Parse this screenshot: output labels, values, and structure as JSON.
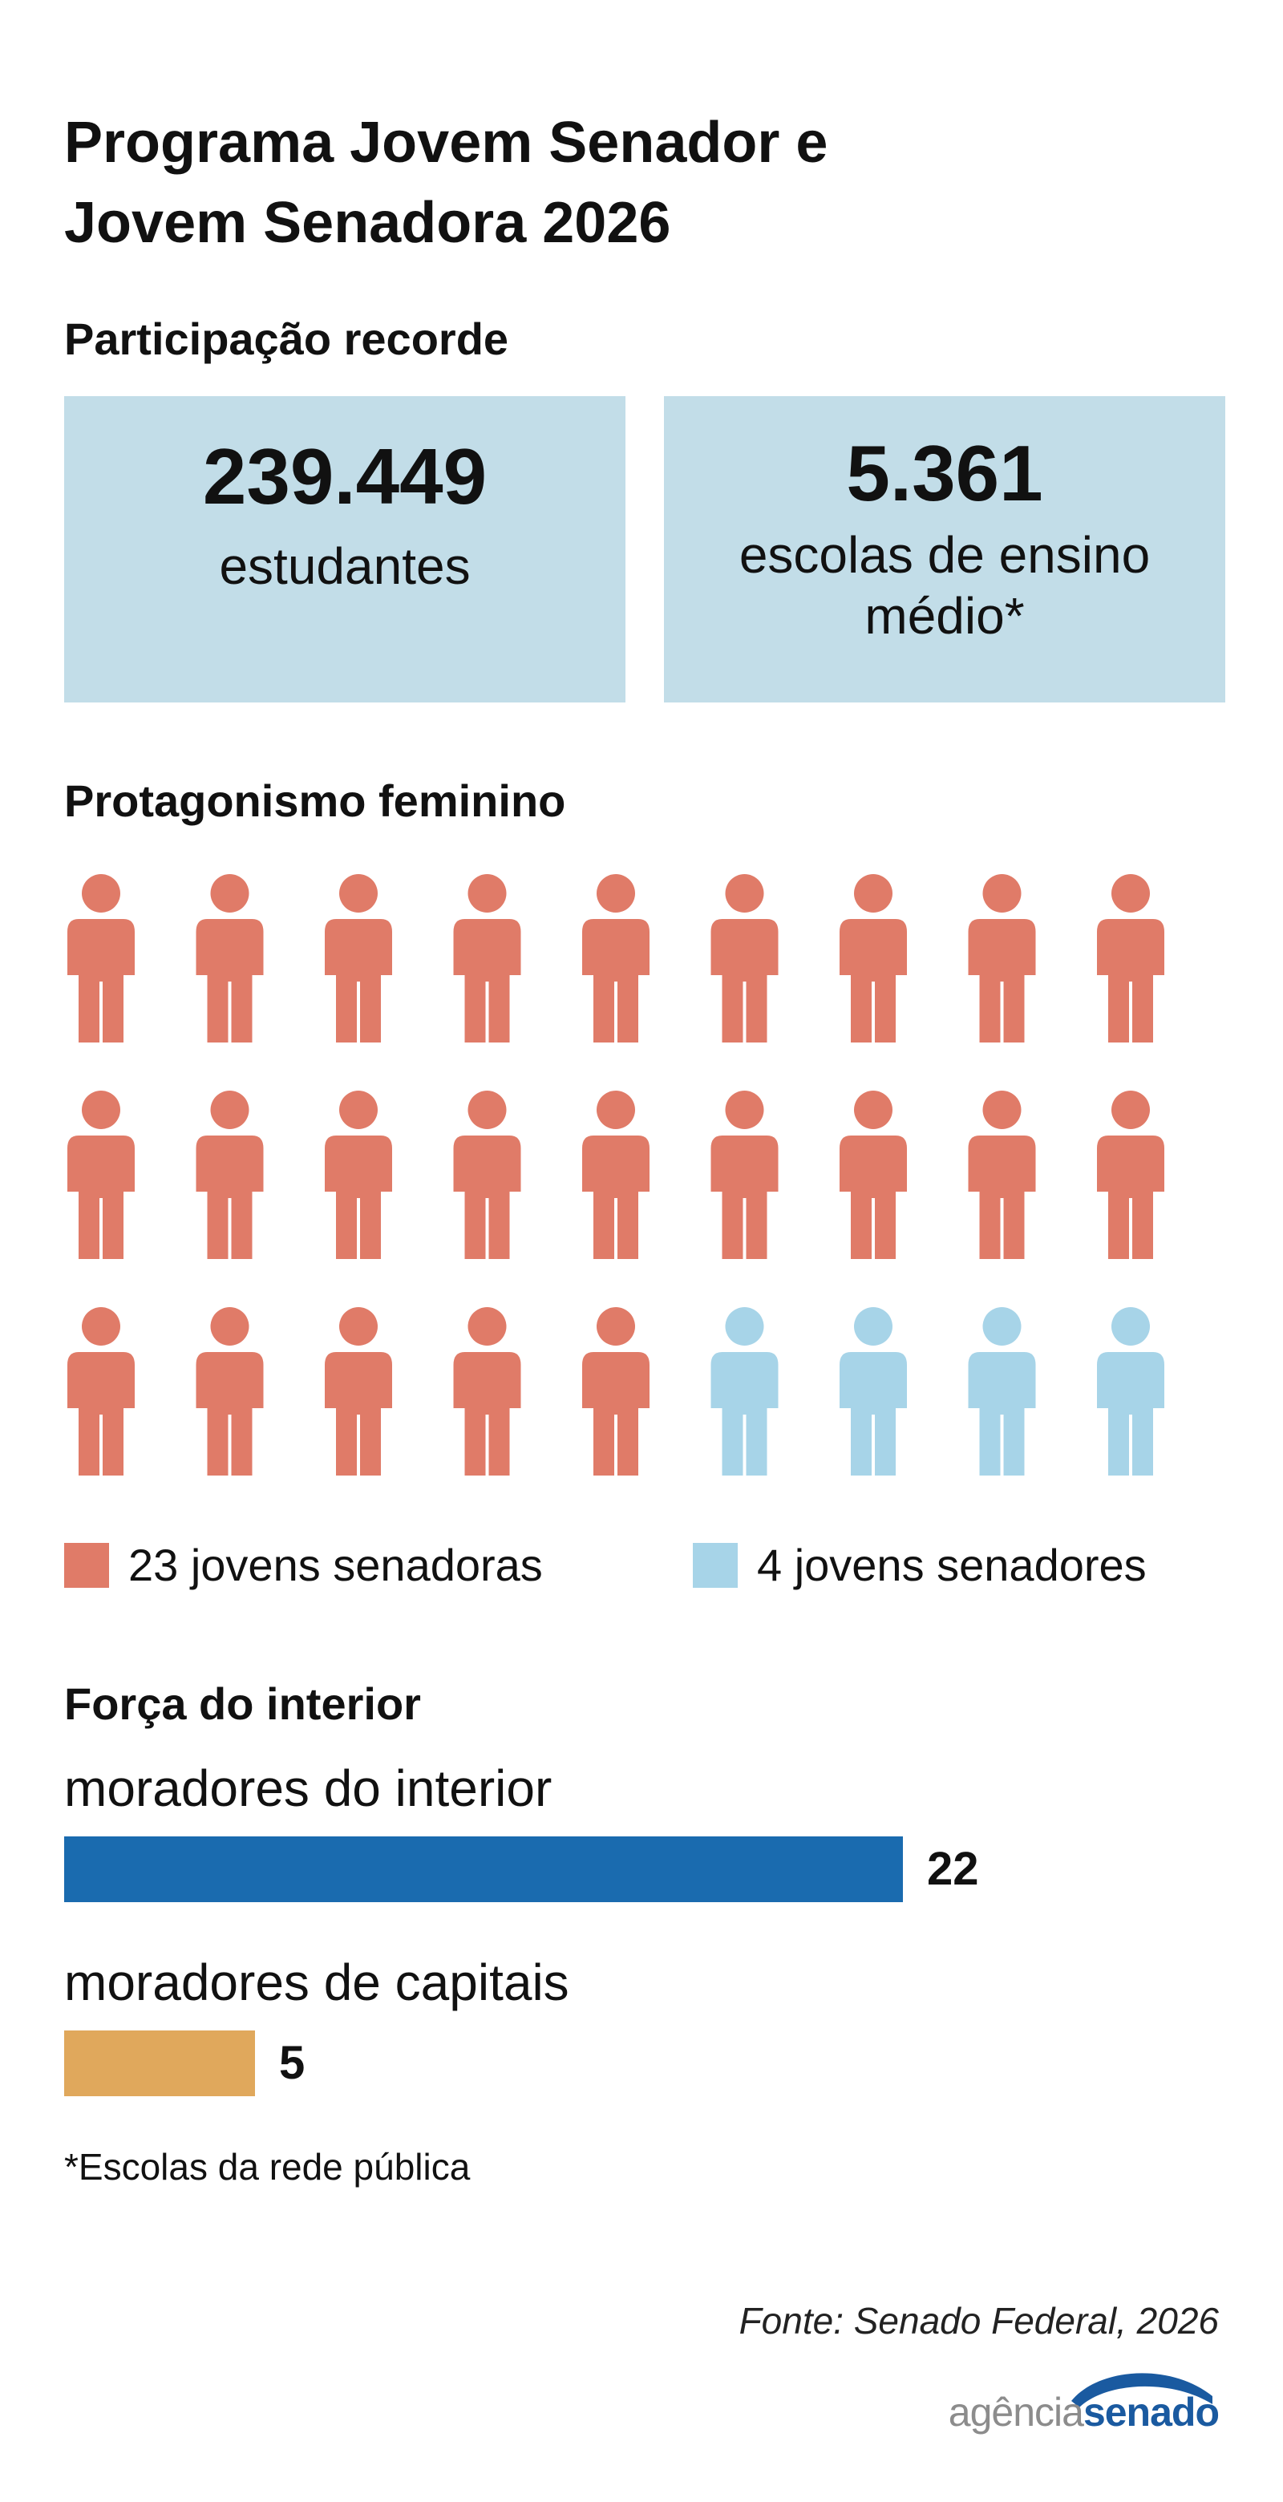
{
  "header": {
    "title_line1": "Programa Jovem Senador e",
    "title_line2": "Jovem Senadora 2026"
  },
  "participation": {
    "title": "Participação recorde",
    "students": {
      "value": "239.449",
      "label": "estudantes"
    },
    "schools": {
      "value": "5.361",
      "label": "escolas de ensino médio*"
    }
  },
  "chart_data": [
    {
      "type": "pictogram",
      "title": "Protagonismo feminino",
      "columns": 9,
      "series": [
        {
          "name": "23 jovens senadoras",
          "value": 23,
          "color": "#e07b68"
        },
        {
          "name": "4 jovens senadores",
          "value": 4,
          "color": "#a7d4e8"
        }
      ],
      "icon": "person-icon"
    },
    {
      "type": "bar",
      "title": "Força do interior",
      "categories": [
        "moradores do interior",
        "moradores de capitais"
      ],
      "values": [
        22,
        5
      ],
      "value_labels": [
        "22",
        "5"
      ],
      "colors": [
        "#1a6baf",
        "#e0a85c"
      ]
    }
  ],
  "footnote": "*Escolas da rede pública",
  "source": "Fonte: Senado Federal, 2026",
  "logo": {
    "part1": "agência",
    "part2": "senado"
  }
}
